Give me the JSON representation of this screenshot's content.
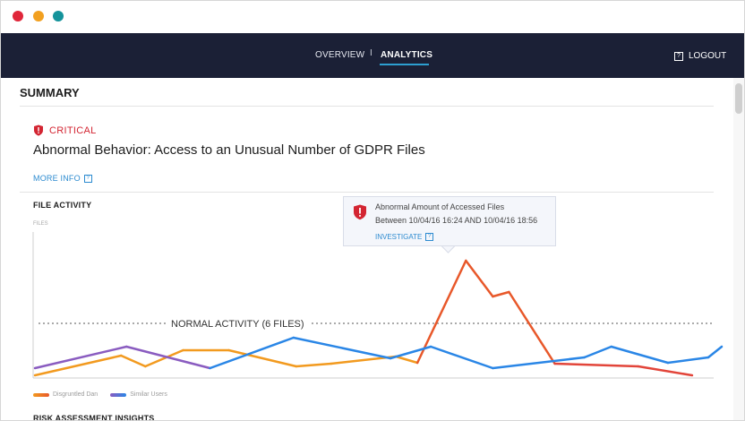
{
  "nav": {
    "items": [
      {
        "label": "OVERVIEW",
        "active": false
      },
      {
        "label": "ANALYTICS",
        "active": true
      }
    ],
    "separator": "I",
    "logout_label": "LOGOUT"
  },
  "summary": {
    "title": "SUMMARY",
    "severity": "CRITICAL",
    "headline": "Abnormal Behavior: Access to an Unusual Number of GDPR Files",
    "more_info": "MORE INFO"
  },
  "file_activity": {
    "title": "FILE ACTIVITY",
    "ylabel": "FILES",
    "threshold_label": "NORMAL ACTIVITY (6 FILES)",
    "tooltip": {
      "line1": "Abnormal Amount of Accessed Files",
      "line2": "Between 10/04/16 16:24 AND 10/04/16 18:56",
      "link": "INVESTIGATE"
    },
    "legend": [
      {
        "name": "Disgruntled Dan",
        "color": "#f29a1f"
      },
      {
        "name": "Similar Users",
        "color": "#2a86e6"
      }
    ]
  },
  "risk": {
    "title": "RISK ASSESSMENT INSIGHTS"
  },
  "colors": {
    "critical": "#d32532",
    "link": "#2d8bd0",
    "nav_bg": "#1b2036",
    "dan": "#f29a1f",
    "dan_anomaly": "#e8582a",
    "similar": "#2a86e6",
    "similar_early": "#8a5cc0"
  },
  "chart_data": {
    "type": "line",
    "ylabel": "FILES",
    "threshold": 6,
    "ylim": [
      0,
      16
    ],
    "xlim": [
      0,
      25
    ],
    "series": [
      {
        "name": "Disgruntled Dan",
        "x": [
          0,
          3.2,
          4.1,
          5.5,
          7.2,
          9.7,
          11.0,
          13.4,
          14.2,
          16.0,
          17.0,
          17.6,
          19.3,
          22.4,
          24.4
        ],
        "values": [
          0.2,
          2.4,
          1.2,
          3.0,
          3.0,
          1.2,
          1.5,
          2.3,
          1.6,
          13.0,
          9.0,
          9.5,
          1.5,
          1.2,
          0.2
        ]
      },
      {
        "name": "Similar Users",
        "x": [
          0,
          3.4,
          6.5,
          9.6,
          13.2,
          14.7,
          17.0,
          20.4,
          21.4,
          23.5,
          25.0,
          25.5
        ],
        "values": [
          1.0,
          3.4,
          1.0,
          4.4,
          2.1,
          3.4,
          1.0,
          2.2,
          3.4,
          1.6,
          2.2,
          3.4
        ]
      }
    ]
  }
}
